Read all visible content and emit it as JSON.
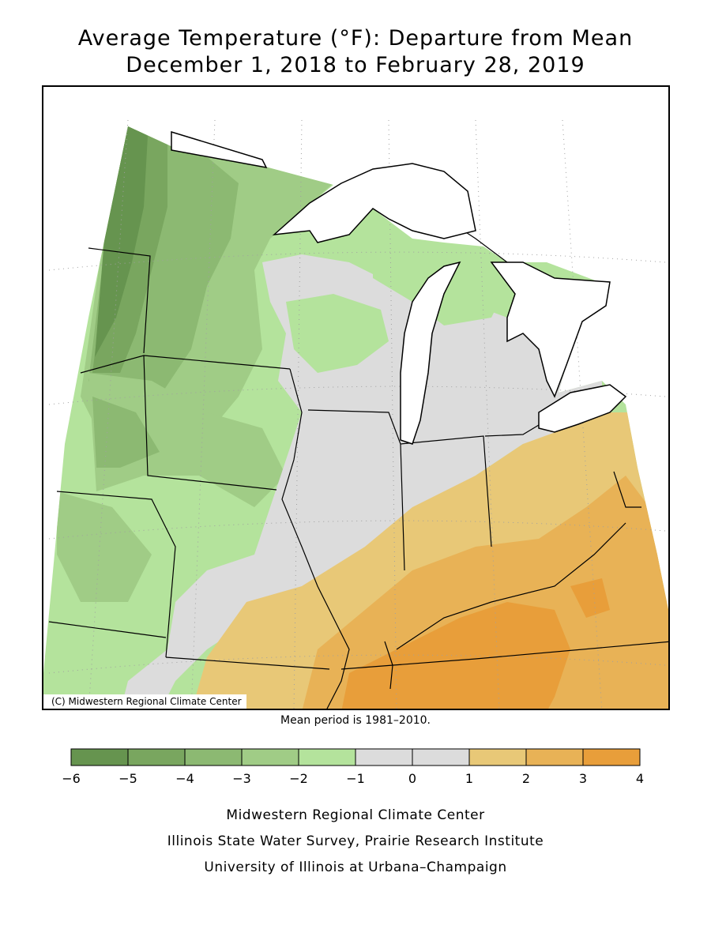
{
  "title": {
    "line1": "Average Temperature (°F): Departure from Mean",
    "line2": "December 1, 2018 to February 28, 2019"
  },
  "map": {
    "copyright": "(C) Midwestern Regional Climate Center",
    "mean_period": "Mean period is 1981–2010.",
    "colors": {
      "water": "#ffffff",
      "outline": "#000000",
      "grid": "#a0a0a0"
    }
  },
  "legend": {
    "ticks": [
      "−6",
      "−5",
      "−4",
      "−3",
      "−2",
      "−1",
      "0",
      "1",
      "2",
      "3",
      "4"
    ],
    "bins": [
      {
        "from": -6,
        "to": -5,
        "color": "#66944f"
      },
      {
        "from": -5,
        "to": -4,
        "color": "#79a65f"
      },
      {
        "from": -4,
        "to": -3,
        "color": "#8cb972"
      },
      {
        "from": -3,
        "to": -2,
        "color": "#a0cc86"
      },
      {
        "from": -2,
        "to": -1,
        "color": "#b4e39c"
      },
      {
        "from": -1,
        "to": 0,
        "color": "#dcdcdc"
      },
      {
        "from": 0,
        "to": 1,
        "color": "#dcdcdc"
      },
      {
        "from": 1,
        "to": 2,
        "color": "#e8c877"
      },
      {
        "from": 2,
        "to": 3,
        "color": "#e8b256"
      },
      {
        "from": 3,
        "to": 4,
        "color": "#e89e3a"
      }
    ]
  },
  "footer": {
    "line1": "Midwestern Regional Climate Center",
    "line2": "Illinois State Water Survey, Prairie Research Institute",
    "line3": "University of Illinois at Urbana–Champaign"
  }
}
